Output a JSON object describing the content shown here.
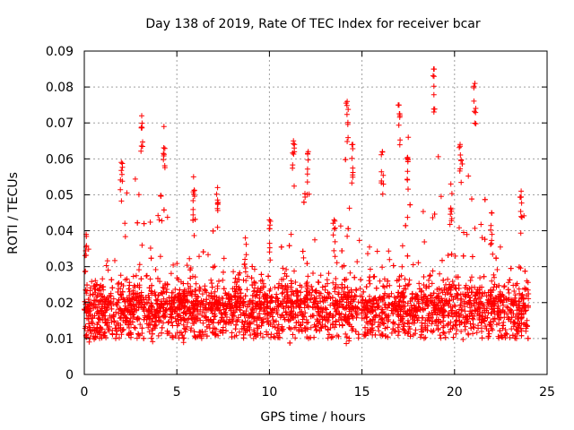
{
  "chart_data": {
    "type": "scatter",
    "title": "Day 138 of 2019, Rate Of TEC Index for receiver bcar",
    "xlabel": "GPS time / hours",
    "ylabel": "ROTI / TECUs",
    "xlim": [
      0,
      25
    ],
    "ylim": [
      0,
      0.09
    ],
    "x_ticks": [
      "0",
      "5",
      "10",
      "15",
      "20",
      "25"
    ],
    "y_ticks": [
      "0",
      "0.01",
      "0.02",
      "0.03",
      "0.04",
      "0.05",
      "0.06",
      "0.07",
      "0.08",
      "0.09"
    ],
    "grid": true,
    "marker": "plus",
    "color": "#ff0000",
    "series": [
      {
        "x_range": [
          0,
          24
        ],
        "typical_range": [
          0.01,
          0.03
        ],
        "peaks": [
          {
            "x": 0.1,
            "y": 0.039
          },
          {
            "x": 2.0,
            "y": 0.059
          },
          {
            "x": 3.1,
            "y": 0.072
          },
          {
            "x": 4.3,
            "y": 0.069
          },
          {
            "x": 5.9,
            "y": 0.055
          },
          {
            "x": 7.2,
            "y": 0.052
          },
          {
            "x": 8.7,
            "y": 0.038
          },
          {
            "x": 10.0,
            "y": 0.043
          },
          {
            "x": 11.3,
            "y": 0.065
          },
          {
            "x": 12.1,
            "y": 0.062
          },
          {
            "x": 13.5,
            "y": 0.043
          },
          {
            "x": 14.2,
            "y": 0.076
          },
          {
            "x": 14.5,
            "y": 0.064
          },
          {
            "x": 16.1,
            "y": 0.062
          },
          {
            "x": 17.0,
            "y": 0.075
          },
          {
            "x": 17.5,
            "y": 0.066
          },
          {
            "x": 18.9,
            "y": 0.085
          },
          {
            "x": 19.8,
            "y": 0.053
          },
          {
            "x": 20.3,
            "y": 0.064
          },
          {
            "x": 21.1,
            "y": 0.081
          },
          {
            "x": 22.0,
            "y": 0.045
          },
          {
            "x": 23.6,
            "y": 0.051
          }
        ]
      }
    ]
  }
}
